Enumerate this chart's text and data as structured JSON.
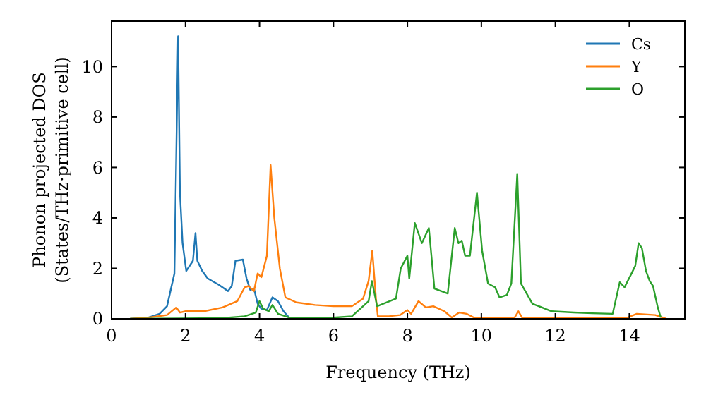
{
  "chart_data": {
    "type": "line",
    "xlabel": "Frequency (THz)",
    "ylabel": "Phonon projected DOS\n(States/THz·primitive cell)",
    "xlim": [
      0,
      15.5
    ],
    "ylim": [
      0,
      11.8
    ],
    "xticks": [
      0,
      2,
      4,
      6,
      8,
      10,
      12,
      14
    ],
    "yticks": [
      0,
      2,
      4,
      6,
      8,
      10
    ],
    "legend": "top right",
    "grid": false,
    "line_style": "solid",
    "marker": "none",
    "series": [
      {
        "name": "Cs",
        "color": "#1f77b4",
        "x": [
          0.5,
          1.0,
          1.3,
          1.5,
          1.7,
          1.8,
          1.85,
          1.92,
          2.02,
          2.2,
          2.27,
          2.32,
          2.45,
          2.6,
          2.9,
          3.15,
          3.25,
          3.35,
          3.55,
          3.65,
          3.75,
          3.85,
          3.95,
          4.05,
          4.2,
          4.35,
          4.5,
          4.65,
          4.8,
          5.0,
          5.5
        ],
        "values": [
          0,
          0.05,
          0.2,
          0.5,
          1.8,
          11.2,
          5,
          3,
          1.9,
          2.3,
          3.4,
          2.3,
          1.9,
          1.6,
          1.35,
          1.1,
          1.3,
          2.3,
          2.35,
          1.6,
          1.15,
          1.2,
          0.6,
          0.4,
          0.35,
          0.85,
          0.7,
          0.3,
          0.05,
          0,
          0
        ]
      },
      {
        "name": "Y",
        "color": "#ff7f0e",
        "x": [
          0.5,
          1.0,
          1.5,
          1.75,
          1.85,
          2.0,
          2.5,
          3.0,
          3.4,
          3.6,
          3.7,
          3.85,
          3.95,
          4.05,
          4.2,
          4.3,
          4.4,
          4.55,
          4.7,
          5.0,
          5.5,
          6.0,
          6.5,
          6.8,
          6.95,
          7.05,
          7.15,
          7.2,
          7.5,
          7.8,
          8.0,
          8.1,
          8.3,
          8.5,
          8.7,
          9.0,
          9.2,
          9.4,
          9.6,
          9.8,
          10.5,
          10.9,
          11.0,
          11.1,
          13.9,
          14.2,
          14.7,
          14.9,
          15.0
        ],
        "values": [
          0,
          0.05,
          0.15,
          0.45,
          0.25,
          0.3,
          0.3,
          0.45,
          0.7,
          1.25,
          1.3,
          1.1,
          1.8,
          1.65,
          2.5,
          6.1,
          4,
          2,
          0.85,
          0.65,
          0.55,
          0.5,
          0.5,
          0.8,
          1.5,
          2.7,
          0.8,
          0.1,
          0.1,
          0.15,
          0.35,
          0.2,
          0.7,
          0.45,
          0.5,
          0.3,
          0.05,
          0.25,
          0.2,
          0.05,
          0.02,
          0.05,
          0.3,
          0.05,
          0.02,
          0.2,
          0.15,
          0.05,
          0
        ]
      },
      {
        "name": "O",
        "color": "#2ca02c",
        "x": [
          0.5,
          3.0,
          3.6,
          3.9,
          4.0,
          4.1,
          4.25,
          4.35,
          4.5,
          4.8,
          6.0,
          6.5,
          6.8,
          6.95,
          7.04,
          7.18,
          7.69,
          7.82,
          8.0,
          8.05,
          8.2,
          8.39,
          8.58,
          8.73,
          9.09,
          9.28,
          9.38,
          9.47,
          9.56,
          9.69,
          9.88,
          10.02,
          10.18,
          10.37,
          10.49,
          10.69,
          10.81,
          10.97,
          11.07,
          11.38,
          11.9,
          12.5,
          13.0,
          13.55,
          13.74,
          13.87,
          14.06,
          14.16,
          14.25,
          14.34,
          14.45,
          14.55,
          14.64,
          14.77,
          14.85
        ],
        "values": [
          0,
          0.03,
          0.1,
          0.25,
          0.7,
          0.4,
          0.3,
          0.55,
          0.2,
          0.05,
          0.05,
          0.1,
          0.5,
          0.7,
          1.5,
          0.5,
          0.8,
          2.0,
          2.5,
          1.6,
          3.8,
          3.0,
          3.6,
          1.2,
          1.0,
          3.6,
          3.0,
          3.1,
          2.5,
          2.5,
          5.0,
          2.7,
          1.4,
          1.25,
          0.85,
          0.95,
          1.4,
          5.75,
          1.4,
          0.6,
          0.3,
          0.25,
          0.22,
          0.2,
          1.45,
          1.25,
          1.8,
          2.1,
          3.0,
          2.8,
          1.9,
          1.5,
          1.3,
          0.45,
          0.05
        ]
      }
    ]
  }
}
